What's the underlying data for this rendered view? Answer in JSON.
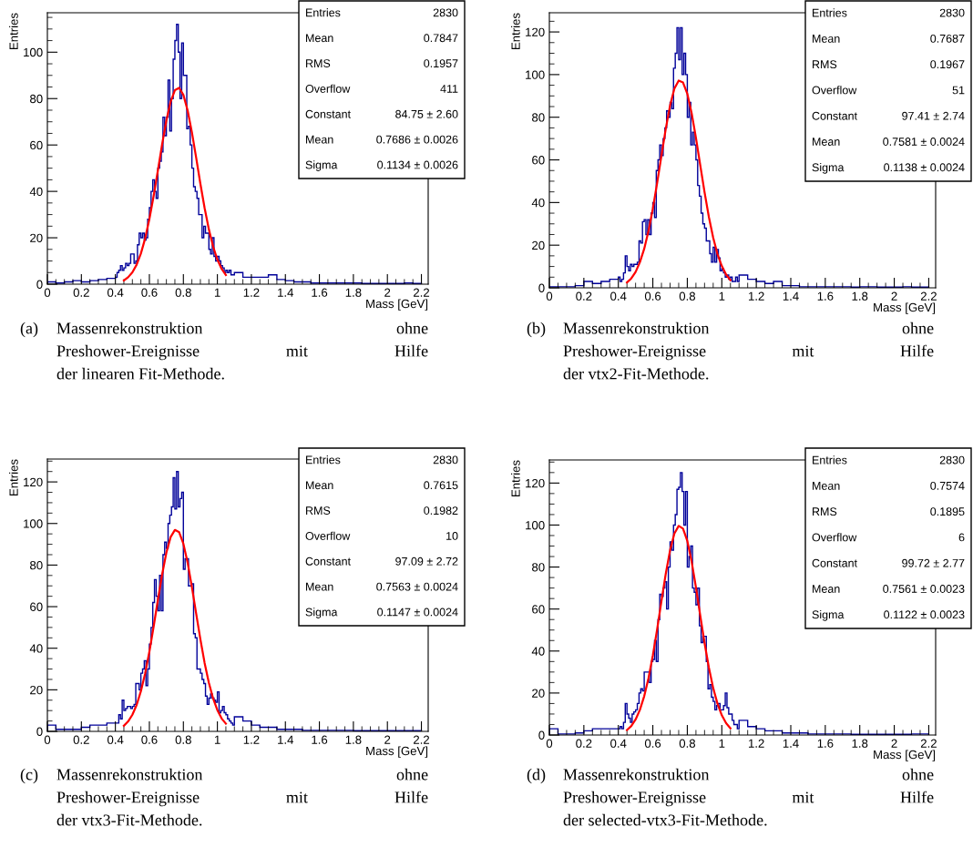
{
  "chart_data": [
    {
      "type": "histogram",
      "title": "(a) Massenrekonstruktion ohne\nPreshower-Ereignisse mit Hilfe\nder linearen Fit-Methode.",
      "xlabel": "Mass [GeV]",
      "ylabel": "Entries",
      "xlim": [
        0,
        2.24
      ],
      "ylim": [
        0,
        117
      ],
      "xticks": [
        0,
        0.2,
        0.4,
        0.6,
        0.8,
        1,
        1.2,
        1.4,
        1.6,
        1.8,
        2,
        2.2
      ],
      "yticks": [
        0,
        20,
        40,
        60,
        80,
        100
      ],
      "annotations": [
        "Entries 2830",
        "Mean 0.7847",
        "RMS 0.1957",
        "Overflow 411",
        "Constant 84.75 ± 2.60",
        "Mean 0.7686 ± 0.0026",
        "Sigma 0.1134 ± 0.0026"
      ],
      "series": [
        {
          "type": "histogram",
          "color": "#000099",
          "bins": [
            0,
            0.05,
            0.1,
            0.15,
            0.2,
            0.25,
            0.3,
            0.35,
            0.4,
            0.41,
            0.42,
            0.43,
            0.44,
            0.45,
            0.46,
            0.47,
            0.48,
            0.49,
            0.5,
            0.51,
            0.52,
            0.53,
            0.54,
            0.55,
            0.56,
            0.57,
            0.58,
            0.59,
            0.6,
            0.61,
            0.62,
            0.63,
            0.64,
            0.65,
            0.66,
            0.67,
            0.68,
            0.69,
            0.7,
            0.71,
            0.72,
            0.73,
            0.74,
            0.75,
            0.76,
            0.77,
            0.78,
            0.79,
            0.8,
            0.81,
            0.82,
            0.83,
            0.84,
            0.85,
            0.86,
            0.87,
            0.88,
            0.89,
            0.9,
            0.91,
            0.92,
            0.93,
            0.94,
            0.95,
            0.96,
            0.97,
            0.98,
            0.99,
            1.0,
            1.01,
            1.02,
            1.03,
            1.04,
            1.05,
            1.06,
            1.07,
            1.08,
            1.09,
            1.1,
            1.15,
            1.2,
            1.25,
            1.3,
            1.35,
            1.4,
            1.45,
            1.5,
            1.55,
            1.6,
            1.65,
            1.7,
            1.75,
            1.8,
            1.85,
            1.9,
            1.95,
            2.0,
            2.05,
            2.1,
            2.15,
            2.2
          ],
          "values": [
            1,
            0.5,
            1,
            1.5,
            1,
            1.5,
            2,
            2.5,
            3,
            5,
            6,
            8,
            6,
            7,
            9,
            8,
            9,
            13,
            13,
            9,
            10,
            17,
            22,
            20,
            22,
            19,
            20,
            28,
            33,
            40,
            45,
            40,
            37,
            50,
            53,
            57,
            72,
            64,
            72,
            88,
            66,
            80,
            97,
            105,
            112,
            100,
            80,
            104,
            90,
            90,
            67,
            68,
            60,
            50,
            42,
            40,
            37,
            30,
            30,
            20,
            25,
            22,
            22,
            15,
            13,
            20,
            12,
            10,
            12,
            10,
            8,
            7,
            5,
            6,
            5,
            6,
            4,
            4,
            5,
            3,
            3,
            3,
            4,
            2,
            1.5,
            1,
            1,
            0.5,
            0.5,
            0.5,
            0.5,
            0.5,
            0.5,
            0.3,
            0.3,
            0.3,
            0.3,
            0.3,
            0.5,
            0.3
          ]
        },
        {
          "type": "line",
          "color": "#ff0000",
          "x": [
            0.45,
            0.475,
            0.5,
            0.525,
            0.55,
            0.575,
            0.6,
            0.625,
            0.65,
            0.675,
            0.7,
            0.725,
            0.75,
            0.775,
            0.8,
            0.825,
            0.85,
            0.875,
            0.9,
            0.925,
            0.95,
            0.975,
            1.0,
            1.025,
            1.05
          ],
          "values": [
            1.6,
            3.0,
            5.1,
            8.4,
            13.2,
            19.7,
            28.1,
            38.0,
            49.0,
            60.3,
            70.6,
            78.7,
            83.6,
            84.6,
            81.6,
            74.9,
            65.5,
            54.6,
            43.3,
            32.8,
            23.6,
            16.2,
            10.6,
            6.6,
            3.9
          ]
        }
      ]
    },
    {
      "type": "histogram",
      "title": "(b) Massenrekonstruktion ohne\nPreshower-Ereignisse mit Hilfe\nder vtx2-Fit-Methode.",
      "xlabel": "Mass [GeV]",
      "ylabel": "Entries",
      "xlim": [
        0,
        2.24
      ],
      "ylim": [
        0,
        129
      ],
      "xticks": [
        0,
        0.2,
        0.4,
        0.6,
        0.8,
        1,
        1.2,
        1.4,
        1.6,
        1.8,
        2,
        2.2
      ],
      "yticks": [
        0,
        20,
        40,
        60,
        80,
        100,
        120
      ],
      "annotations": [
        "Entries 2830",
        "Mean 0.7687",
        "RMS 0.1967",
        "Overflow 51",
        "Constant 97.41 ± 2.74",
        "Mean 0.7581 ± 0.0024",
        "Sigma 0.1138 ± 0.0024"
      ],
      "series": [
        {
          "type": "histogram",
          "color": "#000099",
          "bins": [
            0,
            0.05,
            0.1,
            0.15,
            0.2,
            0.25,
            0.3,
            0.35,
            0.4,
            0.41,
            0.42,
            0.43,
            0.44,
            0.45,
            0.46,
            0.47,
            0.48,
            0.49,
            0.5,
            0.51,
            0.52,
            0.53,
            0.54,
            0.55,
            0.56,
            0.57,
            0.58,
            0.59,
            0.6,
            0.61,
            0.62,
            0.63,
            0.64,
            0.65,
            0.66,
            0.67,
            0.68,
            0.69,
            0.7,
            0.71,
            0.72,
            0.73,
            0.74,
            0.75,
            0.76,
            0.77,
            0.78,
            0.79,
            0.8,
            0.81,
            0.82,
            0.83,
            0.84,
            0.85,
            0.86,
            0.87,
            0.88,
            0.89,
            0.9,
            0.91,
            0.92,
            0.93,
            0.94,
            0.95,
            0.96,
            0.97,
            0.98,
            0.99,
            1.0,
            1.01,
            1.02,
            1.03,
            1.04,
            1.05,
            1.06,
            1.07,
            1.08,
            1.09,
            1.1,
            1.15,
            1.2,
            1.25,
            1.3,
            1.35,
            1.4,
            1.45,
            1.5,
            1.55,
            1.6,
            1.65,
            1.7,
            1.75,
            1.8,
            1.85,
            1.9,
            1.95,
            2.0,
            2.05,
            2.1,
            2.15,
            2.2
          ],
          "values": [
            0.5,
            0.5,
            0.5,
            1,
            3,
            2,
            3,
            4,
            5,
            3,
            4,
            7,
            15,
            10,
            8,
            11,
            10,
            11,
            11,
            12,
            22,
            21,
            31,
            32,
            25,
            32,
            25,
            35,
            40,
            33,
            55,
            60,
            67,
            62,
            70,
            75,
            83,
            80,
            87,
            84,
            103,
            110,
            122,
            107,
            122,
            100,
            110,
            100,
            80,
            87,
            67,
            73,
            67,
            60,
            48,
            43,
            35,
            30,
            28,
            22,
            22,
            16,
            12,
            19,
            12,
            18,
            14,
            8,
            9,
            7,
            5,
            6,
            4,
            5,
            3,
            3,
            5,
            3,
            6,
            4,
            3,
            2,
            3,
            1,
            1,
            0.5,
            0.5,
            0.5,
            0.5,
            0.5,
            0.5,
            0.3,
            0.5,
            0.5,
            0.3,
            0.3,
            0.3,
            0.5,
            0.3,
            0.3
          ]
        },
        {
          "type": "line",
          "color": "#ff0000",
          "x": [
            0.45,
            0.475,
            0.5,
            0.525,
            0.55,
            0.575,
            0.6,
            0.625,
            0.65,
            0.675,
            0.7,
            0.725,
            0.75,
            0.775,
            0.8,
            0.825,
            0.85,
            0.875,
            0.9,
            0.925,
            0.95,
            0.975,
            1.0,
            1.025,
            1.05
          ],
          "values": [
            2.5,
            4.4,
            7.4,
            12.0,
            18.3,
            26.7,
            37.1,
            49.2,
            62.0,
            74.6,
            85.5,
            93.4,
            97.2,
            96.3,
            91.0,
            81.9,
            70.3,
            57.5,
            44.8,
            33.2,
            23.5,
            15.8,
            10.2,
            6.2,
            3.6
          ]
        }
      ]
    },
    {
      "type": "histogram",
      "title": "(c) Massenrekonstruktion ohne\nPreshower-Ereignisse mit Hilfe\nder vtx3-Fit-Methode.",
      "xlabel": "Mass [GeV]",
      "ylabel": "Entries",
      "xlim": [
        0,
        2.24
      ],
      "ylim": [
        0,
        131
      ],
      "xticks": [
        0,
        0.2,
        0.4,
        0.6,
        0.8,
        1,
        1.2,
        1.4,
        1.6,
        1.8,
        2,
        2.2
      ],
      "yticks": [
        0,
        20,
        40,
        60,
        80,
        100,
        120
      ],
      "annotations": [
        "Entries 2830",
        "Mean 0.7615",
        "RMS 0.1982",
        "Overflow 10",
        "Constant 97.09 ± 2.72",
        "Mean 0.7563 ± 0.0024",
        "Sigma 0.1147 ± 0.0024"
      ],
      "series": [
        {
          "type": "histogram",
          "color": "#000099",
          "bins": [
            0,
            0.05,
            0.1,
            0.15,
            0.2,
            0.25,
            0.3,
            0.35,
            0.4,
            0.41,
            0.42,
            0.43,
            0.44,
            0.45,
            0.46,
            0.47,
            0.48,
            0.49,
            0.5,
            0.51,
            0.52,
            0.53,
            0.54,
            0.55,
            0.56,
            0.57,
            0.58,
            0.59,
            0.6,
            0.61,
            0.62,
            0.63,
            0.64,
            0.65,
            0.66,
            0.67,
            0.68,
            0.69,
            0.7,
            0.71,
            0.72,
            0.73,
            0.74,
            0.75,
            0.76,
            0.77,
            0.78,
            0.79,
            0.8,
            0.81,
            0.82,
            0.83,
            0.84,
            0.85,
            0.86,
            0.87,
            0.88,
            0.89,
            0.9,
            0.91,
            0.92,
            0.93,
            0.94,
            0.95,
            0.96,
            0.97,
            0.98,
            0.99,
            1.0,
            1.01,
            1.02,
            1.03,
            1.04,
            1.05,
            1.06,
            1.07,
            1.08,
            1.09,
            1.1,
            1.15,
            1.2,
            1.25,
            1.3,
            1.35,
            1.4,
            1.45,
            1.5,
            1.55,
            1.6,
            1.65,
            1.7,
            1.75,
            1.8,
            1.85,
            1.9,
            1.95,
            2.0,
            2.05,
            2.1,
            2.15,
            2.2
          ],
          "values": [
            3,
            1,
            1,
            1,
            2,
            3,
            3,
            4,
            4,
            4,
            8,
            6,
            15,
            10,
            11,
            12,
            12,
            11,
            12,
            13,
            23,
            23,
            20,
            28,
            30,
            34,
            22,
            30,
            42,
            50,
            62,
            73,
            65,
            58,
            75,
            58,
            85,
            91,
            88,
            100,
            104,
            108,
            122,
            107,
            125,
            108,
            112,
            115,
            78,
            83,
            83,
            70,
            70,
            71,
            47,
            45,
            30,
            30,
            28,
            25,
            23,
            17,
            13,
            16,
            18,
            16,
            15,
            14,
            19,
            9,
            10,
            12,
            9,
            8,
            6,
            5,
            4,
            3,
            7,
            5,
            3,
            2,
            2,
            1,
            1,
            1,
            0.5,
            0.5,
            0.5,
            0.5,
            0.5,
            0.5,
            0.3,
            0.3,
            0.3,
            0.3,
            0.3,
            0.3,
            0.3,
            0.3
          ]
        },
        {
          "type": "line",
          "color": "#ff0000",
          "x": [
            0.45,
            0.475,
            0.5,
            0.525,
            0.55,
            0.575,
            0.6,
            0.625,
            0.65,
            0.675,
            0.7,
            0.725,
            0.75,
            0.775,
            0.8,
            0.825,
            0.85,
            0.875,
            0.9,
            0.925,
            0.95,
            0.975,
            1.0,
            1.025,
            1.05
          ],
          "values": [
            2.7,
            4.8,
            8.0,
            12.7,
            19.3,
            27.8,
            38.3,
            50.4,
            63.2,
            75.5,
            86.0,
            93.5,
            96.9,
            95.8,
            90.3,
            81.2,
            69.5,
            56.8,
            44.3,
            32.9,
            23.3,
            15.8,
            10.2,
            6.2,
            3.7
          ]
        }
      ]
    },
    {
      "type": "histogram",
      "title": "(d) Massenrekonstruktion ohne\nPreshower-Ereignisse mit Hilfe\nder selected-vtx3-Fit-Methode.",
      "xlabel": "Mass [GeV]",
      "ylabel": "Entries",
      "xlim": [
        0,
        2.24
      ],
      "ylim": [
        0,
        131
      ],
      "xticks": [
        0,
        0.2,
        0.4,
        0.6,
        0.8,
        1,
        1.2,
        1.4,
        1.6,
        1.8,
        2,
        2.2
      ],
      "yticks": [
        0,
        20,
        40,
        60,
        80,
        100,
        120
      ],
      "annotations": [
        "Entries 2830",
        "Mean 0.7574",
        "RMS 0.1895",
        "Overflow 6",
        "Constant 99.72 ± 2.77",
        "Mean 0.7561 ± 0.0023",
        "Sigma 0.1122 ± 0.0023"
      ],
      "series": [
        {
          "type": "histogram",
          "color": "#000099",
          "bins": [
            0,
            0.05,
            0.1,
            0.15,
            0.2,
            0.25,
            0.3,
            0.35,
            0.4,
            0.41,
            0.42,
            0.43,
            0.44,
            0.45,
            0.46,
            0.47,
            0.48,
            0.49,
            0.5,
            0.51,
            0.52,
            0.53,
            0.54,
            0.55,
            0.56,
            0.57,
            0.58,
            0.59,
            0.6,
            0.61,
            0.62,
            0.63,
            0.64,
            0.65,
            0.66,
            0.67,
            0.68,
            0.69,
            0.7,
            0.71,
            0.72,
            0.73,
            0.74,
            0.75,
            0.76,
            0.77,
            0.78,
            0.79,
            0.8,
            0.81,
            0.82,
            0.83,
            0.84,
            0.85,
            0.86,
            0.87,
            0.88,
            0.89,
            0.9,
            0.91,
            0.92,
            0.93,
            0.94,
            0.95,
            0.96,
            0.97,
            0.98,
            0.99,
            1.0,
            1.01,
            1.02,
            1.03,
            1.04,
            1.05,
            1.06,
            1.07,
            1.08,
            1.09,
            1.1,
            1.15,
            1.2,
            1.25,
            1.3,
            1.35,
            1.4,
            1.45,
            1.5,
            1.55,
            1.6,
            1.65,
            1.7,
            1.75,
            1.8,
            1.85,
            1.9,
            1.95,
            2.0,
            2.05,
            2.1,
            2.15,
            2.2
          ],
          "values": [
            3,
            0.5,
            0.5,
            1,
            2,
            3,
            3,
            3,
            3,
            4,
            3,
            6,
            15,
            10,
            8,
            6,
            10,
            11,
            12,
            15,
            20,
            22,
            21,
            30,
            30,
            30,
            25,
            35,
            36,
            45,
            35,
            55,
            67,
            66,
            70,
            73,
            60,
            80,
            92,
            88,
            100,
            105,
            117,
            118,
            125,
            116,
            100,
            116,
            80,
            85,
            90,
            70,
            68,
            62,
            70,
            52,
            44,
            47,
            47,
            35,
            22,
            24,
            18,
            16,
            12,
            14,
            15,
            12,
            12,
            14,
            20,
            13,
            10,
            10,
            7,
            5,
            5,
            3,
            7,
            4,
            3,
            2,
            2,
            1,
            1,
            1,
            0.5,
            0.5,
            0.5,
            0.5,
            0.5,
            0.3,
            0.3,
            0.3,
            0.3,
            0.3,
            0.3,
            0.3,
            0.5,
            0.5
          ]
        },
        {
          "type": "line",
          "color": "#ff0000",
          "x": [
            0.45,
            0.475,
            0.5,
            0.525,
            0.55,
            0.575,
            0.6,
            0.625,
            0.65,
            0.675,
            0.7,
            0.725,
            0.75,
            0.775,
            0.8,
            0.825,
            0.85,
            0.875,
            0.9,
            0.925,
            0.95,
            0.975,
            1.0,
            1.025,
            1.05
          ],
          "values": [
            2.4,
            4.3,
            7.4,
            12.0,
            18.5,
            27.1,
            37.9,
            50.4,
            63.8,
            76.8,
            88.0,
            96.0,
            99.6,
            98.3,
            92.4,
            82.6,
            70.3,
            56.9,
            43.8,
            32.1,
            22.4,
            14.9,
            9.4,
            5.6,
            3.2
          ]
        }
      ]
    }
  ]
}
